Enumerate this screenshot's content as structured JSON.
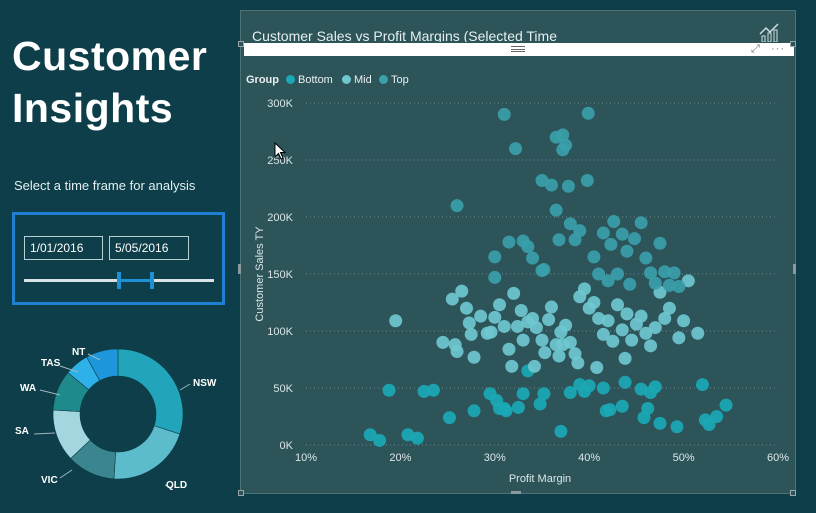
{
  "page": {
    "title_line1": "Customer",
    "title_line2": "Insights",
    "subtitle": "Select a time frame for analysis"
  },
  "slicer": {
    "start_date": "1/01/2016",
    "end_date": "5/05/2016",
    "range_start_fraction": 0.5,
    "range_end_fraction": 0.68
  },
  "donut": {
    "segments": [
      {
        "label": "NSW",
        "value": 30,
        "color": "#22a5ba"
      },
      {
        "label": "QLD",
        "value": 21,
        "color": "#5cbccb"
      },
      {
        "label": "VIC",
        "value": 12,
        "color": "#3b8590"
      },
      {
        "label": "SA",
        "value": 13,
        "color": "#a3d6df"
      },
      {
        "label": "WA",
        "value": 10,
        "color": "#1f8a8c"
      },
      {
        "label": "TAS",
        "value": 6,
        "color": "#2eb0e8"
      },
      {
        "label": "NT",
        "value": 8,
        "color": "#1d96db"
      }
    ]
  },
  "visual": {
    "title": "Customer Sales vs Profit Margins (Selected Time Frame)",
    "focus_icon": "focus-mode-icon",
    "more_icon": "more-options-icon",
    "analytics_icon": "analytics-chart-icon"
  },
  "chart_data": {
    "type": "scatter",
    "xlabel": "Profit Margin",
    "ylabel": "Customer Sales TY",
    "xlim": [
      10,
      60
    ],
    "ylim": [
      0,
      300000
    ],
    "x_ticks": [
      "10%",
      "20%",
      "30%",
      "40%",
      "50%",
      "60%"
    ],
    "y_ticks": [
      "0K",
      "50K",
      "100K",
      "150K",
      "200K",
      "250K",
      "300K"
    ],
    "grid": true,
    "legend": {
      "title": "Group",
      "position": "top-left"
    },
    "series": [
      {
        "name": "Bottom",
        "color": "#1ba8b5",
        "points": [
          [
            16.8,
            9000
          ],
          [
            17.8,
            4000
          ],
          [
            18.8,
            48000
          ],
          [
            20.8,
            9000
          ],
          [
            21.8,
            6000
          ],
          [
            22.5,
            47000
          ],
          [
            23.5,
            48000
          ],
          [
            25.2,
            24000
          ],
          [
            27.8,
            30000
          ],
          [
            29.5,
            45000
          ],
          [
            30.2,
            39000
          ],
          [
            30.5,
            32000
          ],
          [
            31.0,
            32000
          ],
          [
            31.2,
            30000
          ],
          [
            32.5,
            33000
          ],
          [
            33.0,
            45000
          ],
          [
            33.5,
            65000
          ],
          [
            34.8,
            36000
          ],
          [
            35.2,
            45000
          ],
          [
            38.0,
            46000
          ],
          [
            39.0,
            53000
          ],
          [
            39.5,
            47000
          ],
          [
            40.0,
            52000
          ],
          [
            41.5,
            50000
          ],
          [
            41.8,
            30000
          ],
          [
            42.2,
            31000
          ],
          [
            43.5,
            34000
          ],
          [
            43.8,
            55000
          ],
          [
            45.5,
            49000
          ],
          [
            45.8,
            24000
          ],
          [
            46.2,
            32000
          ],
          [
            46.5,
            46000
          ],
          [
            47.0,
            51000
          ],
          [
            47.5,
            19000
          ],
          [
            49.3,
            16000
          ],
          [
            52.0,
            53000
          ],
          [
            52.3,
            22000
          ],
          [
            52.7,
            18000
          ],
          [
            53.5,
            25000
          ],
          [
            54.5,
            35000
          ],
          [
            37.0,
            12000
          ]
        ]
      },
      {
        "name": "Mid",
        "color": "#6fc7cf",
        "points": [
          [
            19.5,
            109000
          ],
          [
            24.5,
            90000
          ],
          [
            25.5,
            128000
          ],
          [
            25.8,
            88000
          ],
          [
            26.0,
            82000
          ],
          [
            26.5,
            135000
          ],
          [
            27.0,
            120000
          ],
          [
            27.3,
            107000
          ],
          [
            27.5,
            97000
          ],
          [
            27.8,
            77000
          ],
          [
            28.5,
            113000
          ],
          [
            29.2,
            98000
          ],
          [
            29.6,
            99000
          ],
          [
            30.0,
            112000
          ],
          [
            30.5,
            123000
          ],
          [
            31.0,
            104000
          ],
          [
            31.5,
            84000
          ],
          [
            32.0,
            133000
          ],
          [
            32.4,
            104000
          ],
          [
            32.8,
            118000
          ],
          [
            33.5,
            108000
          ],
          [
            34.0,
            111000
          ],
          [
            34.4,
            103000
          ],
          [
            35.0,
            92000
          ],
          [
            35.3,
            81000
          ],
          [
            35.7,
            110000
          ],
          [
            36.0,
            121000
          ],
          [
            36.5,
            88000
          ],
          [
            37.0,
            99000
          ],
          [
            37.2,
            88000
          ],
          [
            37.5,
            105000
          ],
          [
            38.0,
            90000
          ],
          [
            38.5,
            80000
          ],
          [
            39.0,
            130000
          ],
          [
            39.5,
            137000
          ],
          [
            40.0,
            120000
          ],
          [
            40.5,
            125000
          ],
          [
            41.0,
            111000
          ],
          [
            41.5,
            97000
          ],
          [
            42.0,
            109000
          ],
          [
            42.5,
            91000
          ],
          [
            43.0,
            123000
          ],
          [
            43.5,
            101000
          ],
          [
            44.0,
            115000
          ],
          [
            44.5,
            92000
          ],
          [
            45.0,
            106000
          ],
          [
            45.5,
            113000
          ],
          [
            46.0,
            98000
          ],
          [
            46.5,
            87000
          ],
          [
            47.0,
            103000
          ],
          [
            47.5,
            134000
          ],
          [
            48.0,
            111000
          ],
          [
            48.5,
            120000
          ],
          [
            49.5,
            94000
          ],
          [
            50.0,
            109000
          ],
          [
            50.5,
            144000
          ],
          [
            51.5,
            98000
          ],
          [
            36.8,
            78000
          ],
          [
            34.2,
            69000
          ],
          [
            31.8,
            69000
          ],
          [
            33.0,
            92000
          ],
          [
            38.8,
            72000
          ],
          [
            40.8,
            68000
          ],
          [
            43.8,
            76000
          ]
        ]
      },
      {
        "name": "Top",
        "color": "#3aa0aa",
        "points": [
          [
            26.0,
            210000
          ],
          [
            30.0,
            165000
          ],
          [
            30.0,
            147000
          ],
          [
            31.5,
            178000
          ],
          [
            32.2,
            260000
          ],
          [
            33.0,
            179000
          ],
          [
            33.5,
            174000
          ],
          [
            34.0,
            164000
          ],
          [
            35.0,
            153000
          ],
          [
            36.0,
            228000
          ],
          [
            36.5,
            206000
          ],
          [
            36.8,
            180000
          ],
          [
            37.2,
            259000
          ],
          [
            37.5,
            263000
          ],
          [
            37.8,
            227000
          ],
          [
            38.0,
            194000
          ],
          [
            38.5,
            180000
          ],
          [
            39.0,
            188000
          ],
          [
            39.8,
            232000
          ],
          [
            40.5,
            165000
          ],
          [
            41.0,
            150000
          ],
          [
            41.5,
            186000
          ],
          [
            42.0,
            144000
          ],
          [
            42.3,
            176000
          ],
          [
            42.6,
            196000
          ],
          [
            43.0,
            150000
          ],
          [
            43.5,
            185000
          ],
          [
            44.0,
            170000
          ],
          [
            44.3,
            141000
          ],
          [
            44.8,
            181000
          ],
          [
            45.5,
            195000
          ],
          [
            46.0,
            164000
          ],
          [
            46.5,
            151000
          ],
          [
            47.0,
            142000
          ],
          [
            47.5,
            177000
          ],
          [
            48.0,
            152000
          ],
          [
            48.5,
            140000
          ],
          [
            49.0,
            151000
          ],
          [
            49.5,
            139000
          ],
          [
            35.0,
            232000
          ],
          [
            36.5,
            270000
          ],
          [
            37.2,
            272000
          ],
          [
            39.9,
            291000
          ],
          [
            31.0,
            290000
          ],
          [
            35.2,
            154000
          ]
        ]
      }
    ]
  }
}
